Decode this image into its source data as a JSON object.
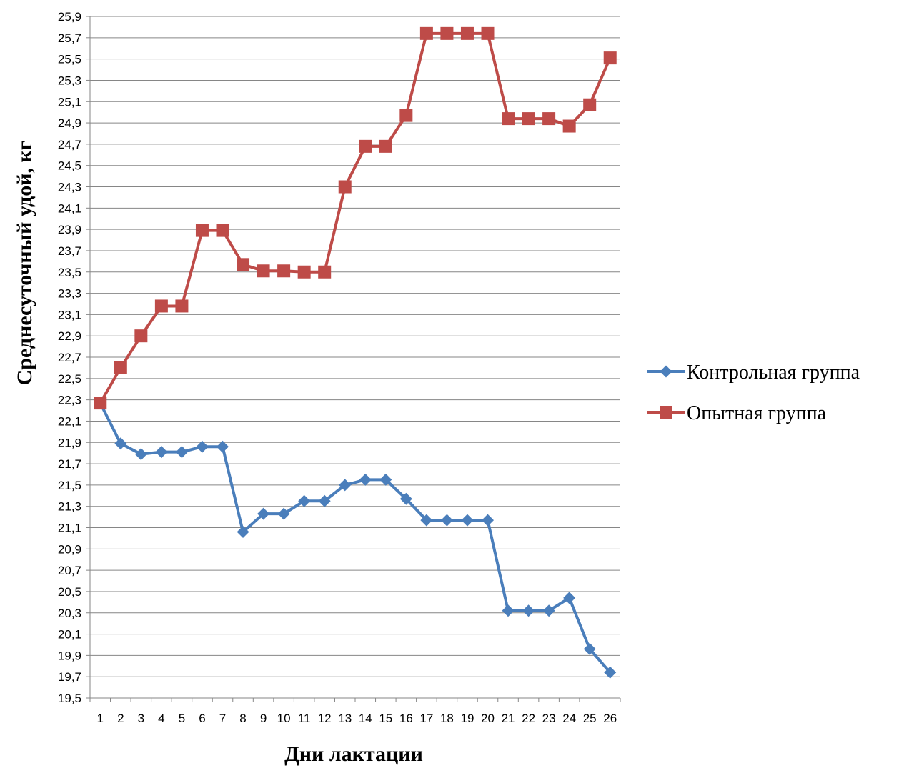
{
  "chart_data": {
    "type": "line",
    "xlabel": "Дни лактации",
    "ylabel": "Среднесуточный удой, кг",
    "ylim": [
      19.5,
      25.9
    ],
    "ytick_step": 0.2,
    "grid": true,
    "legend_position": "right",
    "categories": [
      "1",
      "2",
      "3",
      "4",
      "5",
      "6",
      "7",
      "8",
      "9",
      "10",
      "11",
      "12",
      "13",
      "14",
      "15",
      "16",
      "17",
      "18",
      "19",
      "20",
      "21",
      "22",
      "23",
      "24",
      "25",
      "26"
    ],
    "series": [
      {
        "name": "Контрольная группа",
        "color": "#4a7ebb",
        "marker": "diamond",
        "values": [
          22.27,
          21.89,
          21.79,
          21.81,
          21.81,
          21.86,
          21.86,
          21.06,
          21.23,
          21.23,
          21.35,
          21.35,
          21.5,
          21.55,
          21.55,
          21.37,
          21.17,
          21.17,
          21.17,
          21.17,
          20.32,
          20.32,
          20.32,
          20.44,
          19.96,
          19.74
        ]
      },
      {
        "name": "Опытная группа",
        "color": "#be4b48",
        "marker": "square",
        "values": [
          22.27,
          22.6,
          22.9,
          23.18,
          23.18,
          23.89,
          23.89,
          23.57,
          23.51,
          23.51,
          23.5,
          23.5,
          24.3,
          24.68,
          24.68,
          24.97,
          25.74,
          25.74,
          25.74,
          25.74,
          24.94,
          24.94,
          24.94,
          24.87,
          25.07,
          25.51
        ]
      }
    ]
  }
}
